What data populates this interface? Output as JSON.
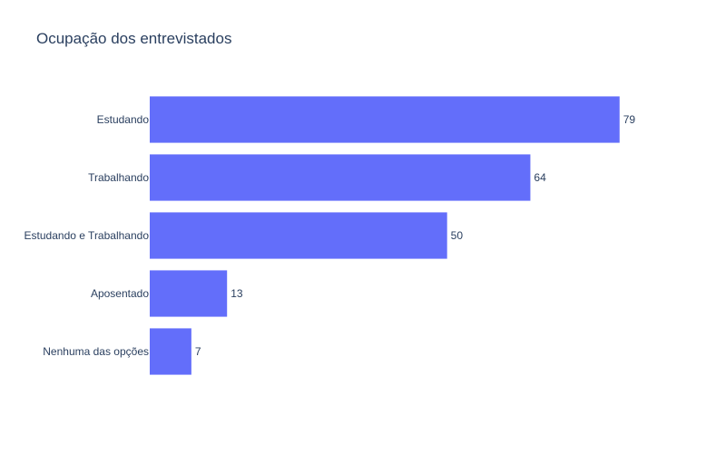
{
  "chart_data": {
    "type": "bar",
    "orientation": "horizontal",
    "title": "Ocupação dos entrevistados",
    "categories": [
      "Estudando",
      "Trabalhando",
      "Estudando e Trabalhando",
      "Aposentado",
      "Nenhuma das opções"
    ],
    "values": [
      79,
      64,
      50,
      13,
      7
    ],
    "data_labels": [
      "79",
      "64",
      "50",
      "13",
      "7"
    ],
    "xlim": [
      0,
      83.16
    ],
    "xlabel": "",
    "ylabel": "",
    "grid": false,
    "legend": false,
    "bar_color": "#636efa"
  }
}
